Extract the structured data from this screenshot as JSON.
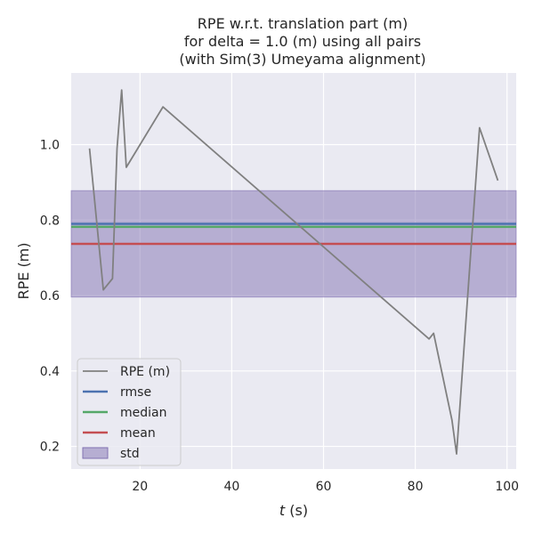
{
  "chart_data": {
    "type": "line",
    "title_lines": [
      "RPE w.r.t. translation part (m)",
      "for delta = 1.0 (m) using all pairs",
      "(with Sim(3) Umeyama alignment)"
    ],
    "xlabel": "t (s)",
    "xlabel_italic": "t",
    "xlabel_rest": " (s)",
    "ylabel": "RPE (m)",
    "xlim": [
      5,
      102
    ],
    "ylim": [
      0.14,
      1.19
    ],
    "xticks": [
      20,
      40,
      60,
      80,
      100
    ],
    "yticks": [
      0.2,
      0.4,
      0.6,
      0.8,
      1.0
    ],
    "ytick_labels": [
      "0.2",
      "0.4",
      "0.6",
      "0.8",
      "1.0"
    ],
    "grid": true,
    "legend_position": "lower-left",
    "series": [
      {
        "name": "RPE (m)",
        "color": "#808080",
        "x": [
          9,
          12,
          14,
          15,
          16,
          17,
          25,
          83,
          84,
          88,
          89,
          94,
          98
        ],
        "y": [
          0.99,
          0.615,
          0.645,
          0.99,
          1.145,
          0.94,
          1.1,
          0.485,
          0.5,
          0.27,
          0.18,
          1.045,
          0.905
        ]
      }
    ],
    "statistics": [
      {
        "name": "rmse",
        "value": 0.79,
        "color": "#4c72b0"
      },
      {
        "name": "median",
        "value": 0.782,
        "color": "#55a868"
      },
      {
        "name": "mean",
        "value": 0.737,
        "color": "#c44e52"
      }
    ],
    "std": {
      "name": "std",
      "lower": 0.596,
      "upper": 0.878,
      "color": "#8172b2"
    },
    "legend": [
      "RPE (m)",
      "rmse",
      "median",
      "mean",
      "std"
    ]
  }
}
